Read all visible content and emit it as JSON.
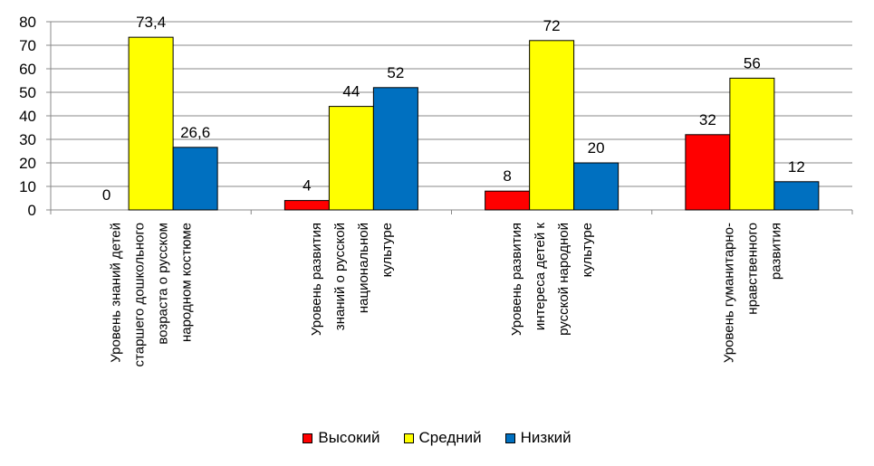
{
  "chart_data": {
    "type": "bar",
    "categories": [
      [
        "Уровень знаний детей",
        "старшего дошкольного",
        "возраста о русском",
        "народном костюме"
      ],
      [
        "Уровень  развития",
        "знаний о русской",
        "национальной",
        "культуре"
      ],
      [
        "Уровень развития",
        "интереса детей к",
        "русской народной",
        "культуре"
      ],
      [
        "Уровень гуманитарно-",
        "нравственного",
        "развития"
      ]
    ],
    "series": [
      {
        "name": "Высокий",
        "values": [
          0,
          4,
          8,
          32
        ],
        "labels": [
          "0",
          "4",
          "8",
          "32"
        ],
        "color": "#ff0000"
      },
      {
        "name": "Средний",
        "values": [
          73.4,
          44,
          72,
          56
        ],
        "labels": [
          "73,4",
          "44",
          "72",
          "56"
        ],
        "color": "#ffff00"
      },
      {
        "name": "Низкий",
        "values": [
          26.6,
          52,
          20,
          12
        ],
        "labels": [
          "26,6",
          "52",
          "20",
          "12"
        ],
        "color": "#0070c0"
      }
    ],
    "yticks": [
      "0",
      "10",
      "20",
      "30",
      "40",
      "50",
      "60",
      "70",
      "80"
    ],
    "ylim": [
      0,
      80
    ],
    "grid": true,
    "legend_position": "bottom"
  }
}
